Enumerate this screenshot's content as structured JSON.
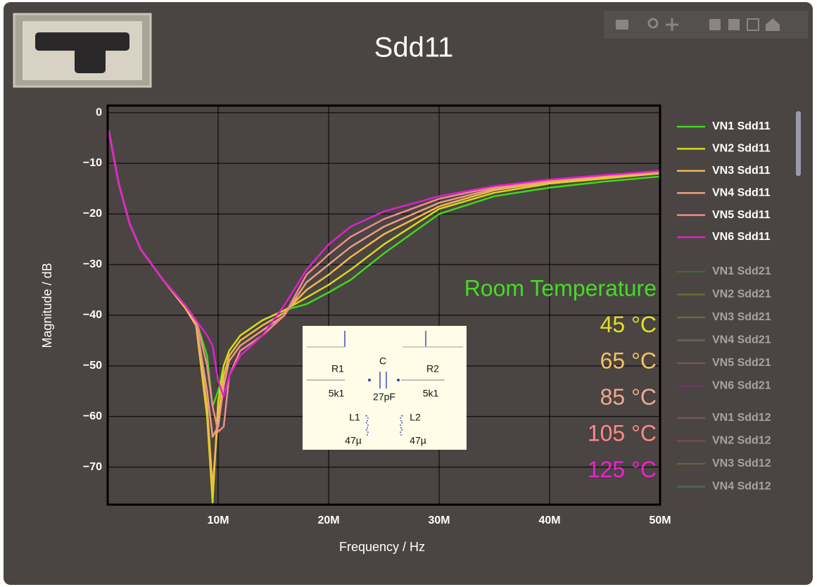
{
  "chart_data": {
    "type": "line",
    "title": "Sdd11",
    "x_label": "Frequency / Hz",
    "y_label": "Magnitude / dB",
    "xlim": [
      0,
      50000000
    ],
    "ylim": [
      -77.4,
      1.4
    ],
    "xticks": [
      {
        "value": 10000000,
        "label": "10M"
      },
      {
        "value": 20000000,
        "label": "20M"
      },
      {
        "value": 30000000,
        "label": "30M"
      },
      {
        "value": 40000000,
        "label": "40M"
      },
      {
        "value": 50000000,
        "label": "50M"
      }
    ],
    "yticks": [
      0,
      {
        "value": -10,
        "label": "−10"
      },
      {
        "value": -20,
        "label": "−20"
      },
      {
        "value": -30,
        "label": "−30"
      },
      {
        "value": -40,
        "label": "−40"
      },
      {
        "value": -50,
        "label": "−50"
      },
      {
        "value": -60,
        "label": "−60"
      },
      {
        "value": -70,
        "label": "−70"
      }
    ],
    "grid": true,
    "x": [
      100000,
      1000000,
      2000000,
      3000000,
      5000000,
      7000000,
      8000000,
      9000000,
      9500000,
      10000000,
      10500000,
      11000000,
      12000000,
      14000000,
      16000000,
      18000000,
      20000000,
      22000000,
      25000000,
      30000000,
      35000000,
      40000000,
      45000000,
      50000000
    ],
    "series": [
      {
        "name": "VN1 Sdd11",
        "color": "#3fd91a",
        "values": [
          -3.5,
          -14,
          -22,
          -27,
          -33,
          -38,
          -41,
          -48,
          -58,
          -55,
          -50,
          -47,
          -44,
          -41,
          -39,
          -37.8,
          -35.5,
          -33,
          -27.8,
          -20,
          -16.5,
          -14.8,
          -13.6,
          -12.6
        ]
      },
      {
        "name": "VN2 Sdd11",
        "color": "#d8d81a",
        "values": [
          -3.5,
          -14,
          -22,
          -27,
          -33,
          -38.5,
          -42,
          -60,
          -77,
          -57,
          -50,
          -47,
          -44,
          -41,
          -39,
          -36.5,
          -34,
          -31,
          -26,
          -19,
          -15.8,
          -14,
          -13,
          -12
        ]
      },
      {
        "name": "VN3 Sdd11",
        "color": "#f5b84a",
        "values": [
          -3.5,
          -14,
          -22,
          -27,
          -33,
          -38.5,
          -42,
          -58,
          -74,
          -60,
          -52,
          -48,
          -45,
          -42,
          -39.5,
          -35,
          -32,
          -28.5,
          -24,
          -18.5,
          -15.3,
          -13.7,
          -12.7,
          -11.9
        ]
      },
      {
        "name": "VN4 Sdd11",
        "color": "#e8a080",
        "values": [
          -3.5,
          -14,
          -22,
          -27,
          -33,
          -38,
          -41.5,
          -55,
          -64,
          -62,
          -54,
          -49,
          -46,
          -43,
          -40,
          -33.5,
          -30,
          -26.5,
          -22.5,
          -17.8,
          -15,
          -13.5,
          -12.5,
          -11.8
        ]
      },
      {
        "name": "VN5 Sdd11",
        "color": "#f08a8a",
        "values": [
          -3.5,
          -14,
          -22,
          -27,
          -33,
          -38,
          -41,
          -50,
          -58,
          -63,
          -62,
          -52,
          -47,
          -44,
          -40,
          -32,
          -28,
          -24.5,
          -21,
          -17,
          -14.7,
          -13.3,
          -12.4,
          -11.6
        ]
      },
      {
        "name": "VN6 Sdd11",
        "color": "#e020d0",
        "values": [
          -3.5,
          -14,
          -22,
          -27,
          -33,
          -38,
          -41,
          -44,
          -46,
          -53,
          -56,
          -52,
          -48,
          -44,
          -38,
          -31,
          -26,
          -22.5,
          -19.5,
          -16.5,
          -14.5,
          -13.2,
          -12.3,
          -11.5
        ]
      }
    ],
    "hidden_legend": [
      {
        "name": "VN1 Sdd21",
        "color": "#4a8a2a"
      },
      {
        "name": "VN2 Sdd21",
        "color": "#8a8a20"
      },
      {
        "name": "VN3 Sdd21",
        "color": "#9a8050"
      },
      {
        "name": "VN4 Sdd21",
        "color": "#9a7a6a"
      },
      {
        "name": "VN5 Sdd21",
        "color": "#a06a60"
      },
      {
        "name": "VN6 Sdd21",
        "color": "#8a2a8a"
      },
      {
        "name": "VN1 Sdd12",
        "color": "#9a6a7a"
      },
      {
        "name": "VN2 Sdd12",
        "color": "#9a5a50"
      },
      {
        "name": "VN3 Sdd12",
        "color": "#6a8a40"
      },
      {
        "name": "VN4 Sdd12",
        "color": "#5a8a60"
      }
    ],
    "annotations": [
      {
        "text": "Room Temperature",
        "color": "#44dd22"
      },
      {
        "text": "45 °C",
        "color": "#e0e020"
      },
      {
        "text": "65 °C",
        "color": "#f5c060"
      },
      {
        "text": "85 °C",
        "color": "#f0a890"
      },
      {
        "text": "105 °C",
        "color": "#ff8888"
      },
      {
        "text": "125 °C",
        "color": "#ee22cc"
      }
    ],
    "inset_labels": [
      "R1",
      "5k1",
      "C",
      "27pF",
      "R2",
      "5k1",
      "L1",
      "47µ",
      "L2",
      "47µ"
    ]
  }
}
